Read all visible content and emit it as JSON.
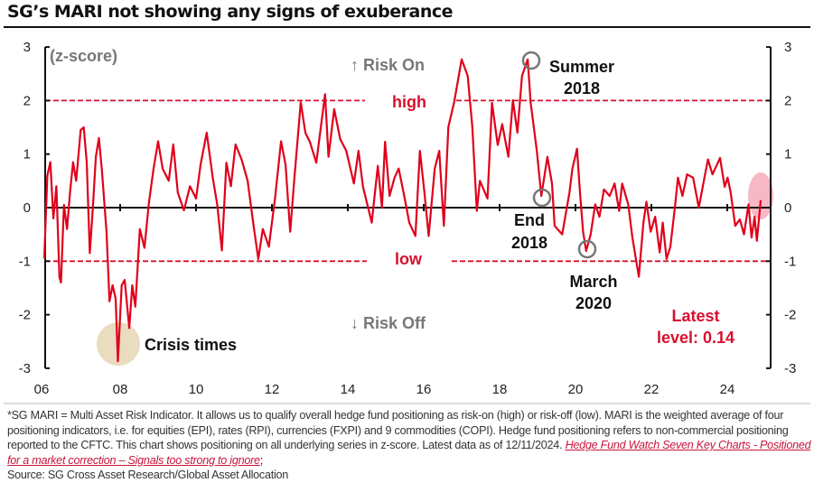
{
  "title": "SG’s MARI not showing any signs of exuberance",
  "chart_data": {
    "type": "line",
    "ylabel": "(z-score)",
    "ylim": [
      -3,
      3
    ],
    "xlim": [
      2006,
      2025.2
    ],
    "yticks": [
      "3",
      "2",
      "1",
      "0",
      "-1",
      "-2",
      "-3"
    ],
    "xticks": [
      "06",
      "08",
      "10",
      "12",
      "14",
      "16",
      "18",
      "20",
      "22",
      "24"
    ],
    "grid": false,
    "line_color": "#e0001b",
    "thresholds": {
      "high": 2,
      "low": -1,
      "high_label": "high",
      "low_label": "low",
      "color": "#d8102e"
    },
    "annotations": {
      "risk_on": "↑ Risk On",
      "risk_off": "↓ Risk Off",
      "crisis": "Crisis times",
      "summer_1": "Summer",
      "summer_2": "2018",
      "end_1": "End",
      "end_2": "2018",
      "march_1": "March",
      "march_2": "2020",
      "latest_1": "Latest",
      "latest_2": "level: 0.14"
    },
    "x": [
      2006.0,
      2006.08,
      2006.16,
      2006.24,
      2006.32,
      2006.4,
      2006.44,
      2006.52,
      2006.6,
      2006.68,
      2006.76,
      2006.84,
      2006.96,
      2007.04,
      2007.12,
      2007.2,
      2007.28,
      2007.36,
      2007.44,
      2007.52,
      2007.64,
      2007.72,
      2007.8,
      2007.88,
      2007.94,
      2008.04,
      2008.12,
      2008.24,
      2008.32,
      2008.4,
      2008.52,
      2008.64,
      2008.76,
      2008.88,
      2009.0,
      2009.12,
      2009.28,
      2009.4,
      2009.52,
      2009.68,
      2009.84,
      2010.0,
      2010.12,
      2010.28,
      2010.44,
      2010.56,
      2010.68,
      2010.8,
      2010.92,
      2011.04,
      2011.2,
      2011.36,
      2011.52,
      2011.64,
      2011.76,
      2011.92,
      2012.08,
      2012.24,
      2012.36,
      2012.48,
      2012.6,
      2012.76,
      2012.88,
      2013.0,
      2013.17,
      2013.4,
      2013.49,
      2013.64,
      2013.8,
      2013.96,
      2014.16,
      2014.28,
      2014.4,
      2014.63,
      2014.79,
      2014.9,
      2014.98,
      2015.1,
      2015.23,
      2015.34,
      2015.5,
      2015.62,
      2015.78,
      2015.9,
      2016.02,
      2016.13,
      2016.29,
      2016.41,
      2016.53,
      2016.65,
      2016.8,
      2017.0,
      2017.16,
      2017.28,
      2017.4,
      2017.48,
      2017.68,
      2017.8,
      2017.95,
      2018.07,
      2018.23,
      2018.35,
      2018.47,
      2018.59,
      2018.74,
      2018.82,
      2018.98,
      2019.1,
      2019.26,
      2019.38,
      2019.45,
      2019.65,
      2019.84,
      2019.92,
      2020.04,
      2020.12,
      2020.2,
      2020.28,
      2020.4,
      2020.52,
      2020.63,
      2020.75,
      2020.9,
      2021.03,
      2021.15,
      2021.23,
      2021.39,
      2021.5,
      2021.67,
      2021.79,
      2021.87,
      2021.98,
      2022.1,
      2022.22,
      2022.3,
      2022.4,
      2022.5,
      2022.62,
      2022.7,
      2022.82,
      2022.94,
      2023.1,
      2023.25,
      2023.37,
      2023.49,
      2023.61,
      2023.81,
      2023.93,
      2024.01,
      2024.09,
      2024.21,
      2024.33,
      2024.44,
      2024.56,
      2024.64,
      2024.72,
      2024.78,
      2024.88
    ],
    "values": [
      -0.95,
      0.6,
      0.85,
      -0.2,
      0.4,
      -1.3,
      -1.4,
      0.05,
      -0.4,
      0.3,
      0.85,
      0.5,
      1.45,
      1.5,
      0.85,
      -0.85,
      0,
      0.95,
      1.3,
      0.7,
      -0.45,
      -1.75,
      -1.45,
      -1.7,
      -2.87,
      -1.45,
      -1.35,
      -2.25,
      -1.45,
      -1.85,
      -0.4,
      -0.75,
      0.1,
      0.73,
      1.24,
      0.73,
      0.5,
      1.18,
      0.28,
      -0.05,
      0.4,
      0.17,
      0.8,
      1.4,
      0.56,
      0.05,
      -0.8,
      0.84,
      0.4,
      1.18,
      0.9,
      0.5,
      -0.35,
      -0.96,
      -0.4,
      -0.73,
      0.17,
      1.24,
      0.8,
      -0.45,
      0.62,
      1.97,
      1.4,
      1.23,
      0.84,
      2.12,
      0.95,
      1.84,
      1.28,
      1.06,
      0.45,
      1.06,
      0.39,
      -0.28,
      0.78,
      0,
      1.23,
      0.22,
      0.56,
      0.73,
      0.17,
      -0.28,
      -0.53,
      1.06,
      0.28,
      -0.53,
      0.73,
      1.06,
      -0.34,
      1.51,
      1.96,
      2.77,
      2.46,
      1.51,
      -0.06,
      0.5,
      0.17,
      1.96,
      1.17,
      1.56,
      0.95,
      2.01,
      1.4,
      2.46,
      2.77,
      1.96,
      1.06,
      0.22,
      0.95,
      0.45,
      -0.34,
      -0.5,
      0.28,
      0.73,
      1.1,
      0.28,
      -0.45,
      -0.81,
      -0.5,
      0.06,
      -0.17,
      0.34,
      0.22,
      0.45,
      -0.06,
      0.45,
      0.06,
      -0.56,
      -1.29,
      -0.28,
      0.11,
      -0.45,
      -0.17,
      -0.84,
      -0.28,
      -0.96,
      -0.73,
      0,
      0.56,
      0.22,
      0.62,
      0.56,
      0,
      0.45,
      0.9,
      0.62,
      0.93,
      0.39,
      0.56,
      0.28,
      -0.34,
      -0.22,
      -0.5,
      0.06,
      -0.56,
      -0.17,
      -0.62,
      0.14
    ]
  },
  "footnote": {
    "text": "*SG MARI = Multi Asset Risk Indicator. It allows us to qualify overall hedge fund positioning as risk-on (high) or risk-off (low). MARI is the weighted average of four positioning indicators, i.e. for equities (EPI), rates (RPI), currencies (FXPI) and 9 commodities (COPI). Hedge fund positioning refers to non-commercial positioning reported to the CFTC.  This chart shows positioning on all underlying series in z-score. Latest data as of 12/11/2024. ",
    "link": "Hedge Fund Watch Seven Key Charts - Positioned for a market correction – Signals too strong to ignore",
    "link_suffix": ";",
    "source": "Source: SG Cross Asset Research/Global Asset Allocation"
  }
}
